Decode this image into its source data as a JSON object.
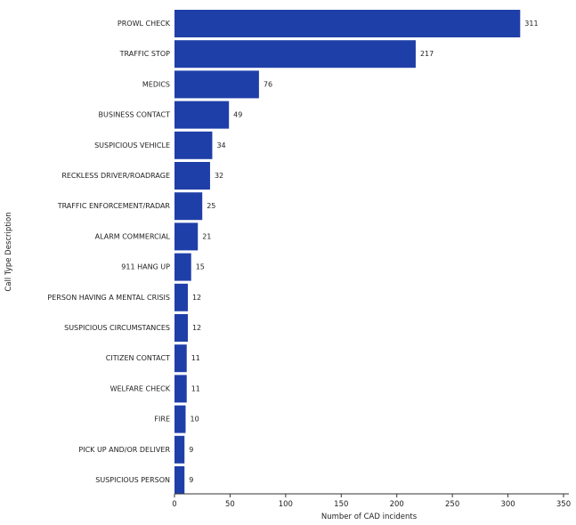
{
  "chart_data": {
    "type": "bar",
    "orientation": "horizontal",
    "categories": [
      "PROWL CHECK",
      "TRAFFIC STOP",
      "MEDICS",
      "BUSINESS CONTACT",
      "SUSPICIOUS VEHICLE",
      "RECKLESS DRIVER/ROADRAGE",
      "TRAFFIC ENFORCEMENT/RADAR",
      "ALARM COMMERCIAL",
      "911 HANG UP",
      "PERSON HAVING A MENTAL CRISIS",
      "SUSPICIOUS CIRCUMSTANCES",
      "CITIZEN CONTACT",
      "WELFARE CHECK",
      "FIRE",
      "PICK UP AND/OR DELIVER",
      "SUSPICIOUS PERSON"
    ],
    "values": [
      311,
      217,
      76,
      49,
      34,
      32,
      25,
      21,
      15,
      12,
      12,
      11,
      11,
      10,
      9,
      9
    ],
    "xlabel": "Number of CAD incidents",
    "ylabel": "Call Type Description",
    "xlim": [
      0,
      350
    ],
    "xticks": [
      "0",
      "50",
      "100",
      "150",
      "200",
      "250",
      "300",
      "350"
    ],
    "show_data_labels": true,
    "grid": false,
    "bar_color": "#1f3fa8"
  }
}
